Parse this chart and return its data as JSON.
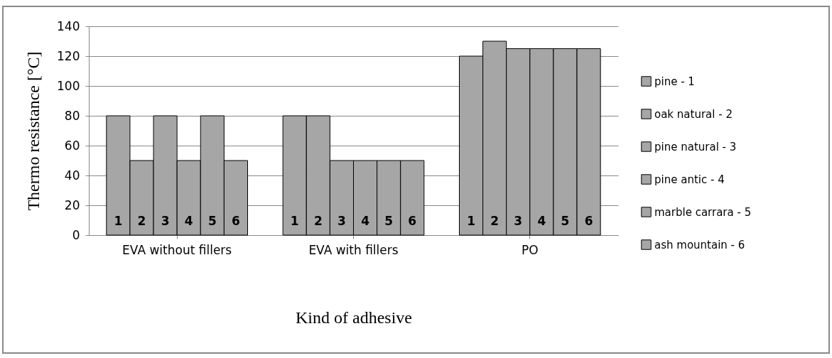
{
  "chart_data": {
    "type": "bar",
    "xlabel": "Kind of adhesive",
    "ylabel": "Thermo resistance [°C]",
    "categories": [
      "EVA without fillers",
      "EVA with fillers",
      "PO"
    ],
    "series": [
      {
        "name": "pine - 1",
        "color": "#a6a6a6",
        "values": [
          80,
          80,
          120
        ]
      },
      {
        "name": "oak natural - 2",
        "color": "#a6a6a6",
        "values": [
          50,
          80,
          130
        ]
      },
      {
        "name": "pine natural - 3",
        "color": "#a6a6a6",
        "values": [
          80,
          50,
          125
        ]
      },
      {
        "name": "pine antic - 4",
        "color": "#a6a6a6",
        "values": [
          50,
          50,
          125
        ]
      },
      {
        "name": "marble carrara - 5",
        "color": "#a6a6a6",
        "values": [
          80,
          50,
          125
        ]
      },
      {
        "name": "ash mountain - 6",
        "color": "#a6a6a6",
        "values": [
          50,
          50,
          125
        ]
      }
    ],
    "annotations": [
      "1",
      "2",
      "3",
      "4",
      "5",
      "6",
      "1",
      "2",
      "3",
      "4",
      "5",
      "6",
      "1",
      "2",
      "3",
      "4",
      "5",
      "6"
    ],
    "ylim": [
      0,
      140
    ],
    "yticks": [
      0,
      20,
      40,
      60,
      80,
      100,
      120,
      140
    ],
    "grid": "y",
    "legend": "right"
  }
}
